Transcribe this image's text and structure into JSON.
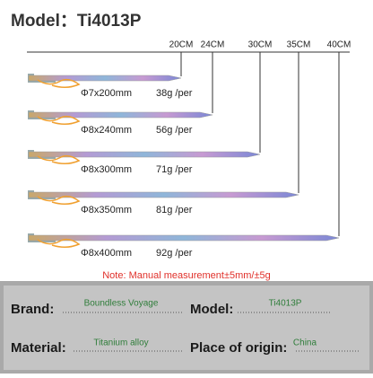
{
  "title": "Model：Ti4013P",
  "ruler": [
    "20CM",
    "24CM",
    "30CM",
    "35CM",
    "40CM"
  ],
  "stakes": [
    {
      "size": "Φ7x200mm",
      "weight": "38g /per"
    },
    {
      "size": "Φ8x240mm",
      "weight": "56g /per"
    },
    {
      "size": "Φ8x300mm",
      "weight": "71g /per"
    },
    {
      "size": "Φ8x350mm",
      "weight": "81g /per"
    },
    {
      "size": "Φ8x400mm",
      "weight": "92g /per"
    }
  ],
  "note": "Note: Manual measurement±5mm/±5g",
  "info": {
    "brand_label": "Brand:",
    "brand": "Boundless Voyage",
    "model_label": "Model:",
    "model": "Ti4013P",
    "material_label": "Material:",
    "material": "Titanium alloy",
    "origin_label": "Place of origin:",
    "origin": "China"
  }
}
